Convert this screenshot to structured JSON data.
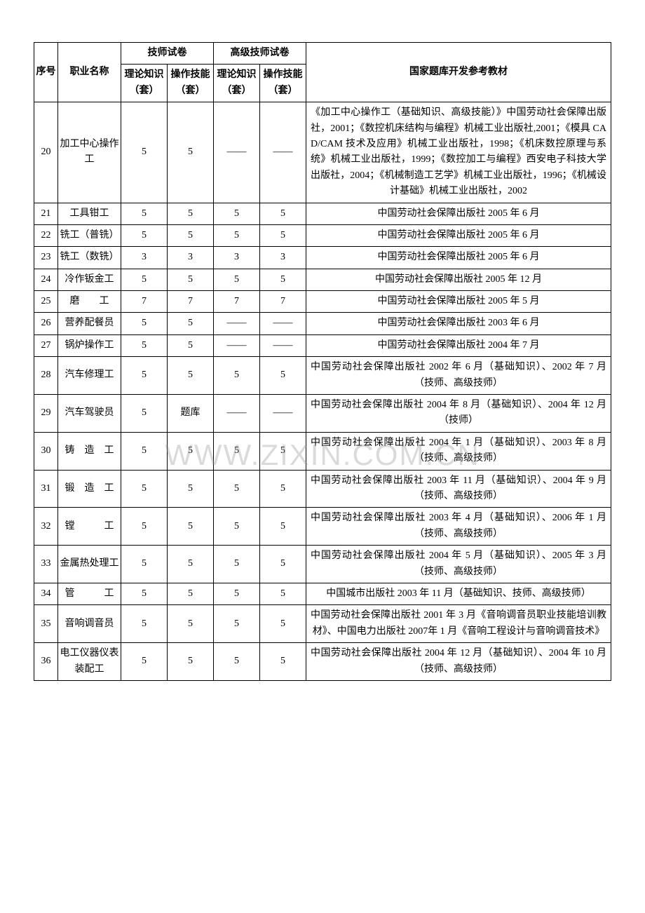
{
  "watermark": "WWW.ZIXIN.COM.CN",
  "header": {
    "seq": "序号",
    "name": "职业名称",
    "group1": "技师试卷",
    "group2": "高级技师试卷",
    "sub_theory": "理论知识（套）",
    "sub_skill": "操作技能（套）",
    "ref": "国家题库开发参考教材"
  },
  "rows": [
    {
      "seq": "20",
      "name": "加工中心操作工",
      "t1": "5",
      "s1": "5",
      "t2": "——",
      "s2": "——",
      "ref": "《加工中心操作工（基础知识、高级技能）》中国劳动社会保障出版社，2001；《数控机床结构与编程》机械工业出版社,2001；《模具 CAD/CAM 技术及应用》机械工业出版社，1998；《机床数控原理与系统》机械工业出版社，1999；《数控加工与编程》西安电子科技大学出版社，2004；《机械制造工艺学》机械工业出版社，1996；《机械设计基础》机械工业出版社，2002"
    },
    {
      "seq": "21",
      "name": "工具钳工",
      "t1": "5",
      "s1": "5",
      "t2": "5",
      "s2": "5",
      "ref": "中国劳动社会保障出版社 2005 年 6 月"
    },
    {
      "seq": "22",
      "name": "铣工（普铣）",
      "t1": "5",
      "s1": "5",
      "t2": "5",
      "s2": "5",
      "ref": "中国劳动社会保障出版社 2005 年 6 月"
    },
    {
      "seq": "23",
      "name": "铣工（数铣）",
      "t1": "3",
      "s1": "3",
      "t2": "3",
      "s2": "3",
      "ref": "中国劳动社会保障出版社 2005 年 6 月"
    },
    {
      "seq": "24",
      "name": "冷作钣金工",
      "t1": "5",
      "s1": "5",
      "t2": "5",
      "s2": "5",
      "ref": "中国劳动社会保障出版社 2005 年 12 月"
    },
    {
      "seq": "25",
      "name": "磨　　工",
      "t1": "7",
      "s1": "7",
      "t2": "7",
      "s2": "7",
      "ref": "中国劳动社会保障出版社 2005 年 5 月"
    },
    {
      "seq": "26",
      "name": "营养配餐员",
      "t1": "5",
      "s1": "5",
      "t2": "——",
      "s2": "——",
      "ref": "中国劳动社会保障出版社 2003 年 6 月"
    },
    {
      "seq": "27",
      "name": "锅炉操作工",
      "t1": "5",
      "s1": "5",
      "t2": "——",
      "s2": "——",
      "ref": "中国劳动社会保障出版社 2004 年 7 月"
    },
    {
      "seq": "28",
      "name": "汽车修理工",
      "t1": "5",
      "s1": "5",
      "t2": "5",
      "s2": "5",
      "ref": "中国劳动社会保障出版社 2002 年 6 月（基础知识）、2002 年 7 月（技师、高级技师）"
    },
    {
      "seq": "29",
      "name": "汽车驾驶员",
      "t1": "5",
      "s1": "题库",
      "t2": "——",
      "s2": "——",
      "ref": "中国劳动社会保障出版社 2004 年 8 月（基础知识）、2004 年 12 月（技师）"
    },
    {
      "seq": "30",
      "name": "铸　造　工",
      "t1": "5",
      "s1": "5",
      "t2": "5",
      "s2": "5",
      "ref": "中国劳动社会保障出版社 2004 年 1 月（基础知识）、2003 年 8 月（技师、高级技师）"
    },
    {
      "seq": "31",
      "name": "锻　造　工",
      "t1": "5",
      "s1": "5",
      "t2": "5",
      "s2": "5",
      "ref": "中国劳动社会保障出版社 2003 年 11 月（基础知识）、2004 年 9 月（技师、高级技师）"
    },
    {
      "seq": "32",
      "name": "镗　　　工",
      "t1": "5",
      "s1": "5",
      "t2": "5",
      "s2": "5",
      "ref": "中国劳动社会保障出版社 2003 年 4 月（基础知识）、2006 年 1 月（技师、高级技师）"
    },
    {
      "seq": "33",
      "name": "金属热处理工",
      "t1": "5",
      "s1": "5",
      "t2": "5",
      "s2": "5",
      "ref": "中国劳动社会保障出版社 2004 年 5 月（基础知识）、2005 年 3 月（技师、高级技师）"
    },
    {
      "seq": "34",
      "name": "管　　　工",
      "t1": "5",
      "s1": "5",
      "t2": "5",
      "s2": "5",
      "ref": "中国城市出版社 2003 年 11 月（基础知识、技师、高级技师）"
    },
    {
      "seq": "35",
      "name": "音响调音员",
      "t1": "5",
      "s1": "5",
      "t2": "5",
      "s2": "5",
      "ref": "中国劳动社会保障出版社 2001 年 3 月《音响调音员职业技能培训教材》、中国电力出版社 2007年 1 月《音响工程设计与音响调音技术》"
    },
    {
      "seq": "36",
      "name": "电工仪器仪表装配工",
      "t1": "5",
      "s1": "5",
      "t2": "5",
      "s2": "5",
      "ref": "中国劳动社会保障出版社 2004 年 12 月（基础知识）、2004 年 10 月（技师、高级技师）"
    }
  ]
}
